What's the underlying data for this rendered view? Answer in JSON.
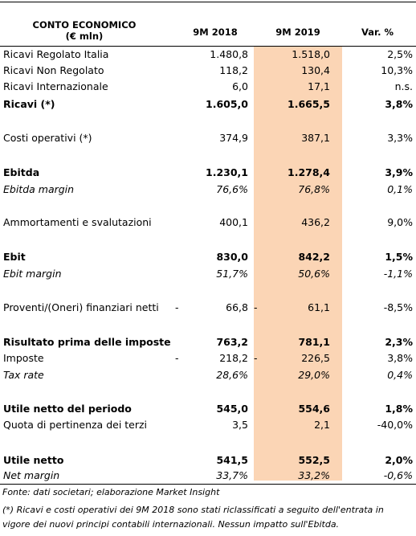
{
  "header": {
    "title_line1": "CONTO ECONOMICO",
    "title_line2": "(€ mln)",
    "col1": "9M 2018",
    "col2": "9M 2019",
    "col3": "Var. %"
  },
  "rows": [
    {
      "label": "Ricavi Regolato Italia",
      "v1": "1.480,8",
      "v2": "1.518,0",
      "v3": "2,5%"
    },
    {
      "label": "Ricavi Non Regolato",
      "v1": "118,2",
      "v2": "130,4",
      "v3": "10,3%"
    },
    {
      "label": "Ricavi Internazionale",
      "v1": "6,0",
      "v2": "17,1",
      "v3": "n.s."
    },
    {
      "label": "Ricavi (*)",
      "v1": "1.605,0",
      "v2": "1.665,5",
      "v3": "3,8%"
    },
    {
      "label": "Costi operativi (*)",
      "v1": "374,9",
      "v2": "387,1",
      "v3": "3,3%"
    },
    {
      "label": "Ebitda",
      "v1": "1.230,1",
      "v2": "1.278,4",
      "v3": "3,9%"
    },
    {
      "label": "Ebitda margin",
      "v1": "76,6%",
      "v2": "76,8%",
      "v3": "0,1%"
    },
    {
      "label": "Ammortamenti e svalutazioni",
      "v1": "400,1",
      "v2": "436,2",
      "v3": "9,0%"
    },
    {
      "label": "Ebit",
      "v1": "830,0",
      "v2": "842,2",
      "v3": "1,5%"
    },
    {
      "label": "Ebit margin",
      "v1": "51,7%",
      "v2": "50,6%",
      "v3": "-1,1%"
    },
    {
      "label": "Proventi/(Oneri) finanziari netti",
      "neg1": "-",
      "v1": "66,8",
      "neg2": "-",
      "v2": "61,1",
      "v3": "-8,5%"
    },
    {
      "label": "Risultato prima delle imposte",
      "v1": "763,2",
      "v2": "781,1",
      "v3": "2,3%"
    },
    {
      "label": "Imposte",
      "neg1": "-",
      "v1": "218,2",
      "neg2": "-",
      "v2": "226,5",
      "v3": "3,8%"
    },
    {
      "label": "Tax rate",
      "v1": "28,6%",
      "v2": "29,0%",
      "v3": "0,4%"
    },
    {
      "label": "Utile netto del periodo",
      "v1": "545,0",
      "v2": "554,6",
      "v3": "1,8%"
    },
    {
      "label": "Quota di pertinenza dei terzi",
      "v1": "3,5",
      "v2": "2,1",
      "v3": "-40,0%"
    },
    {
      "label": "Utile netto",
      "v1": "541,5",
      "v2": "552,5",
      "v3": "2,0%"
    },
    {
      "label": "Net margin",
      "v1": "33,7%",
      "v2": "33,2%",
      "v3": "-0,6%"
    }
  ],
  "footer": {
    "source": "Fonte: dati societari; elaborazione Market Insight",
    "note_line1": "(*) Ricavi e costi operativi dei 9M 2018 sono stati riclassificati a seguito dell'entrata in",
    "note_line2": "vigore dei nuovi principi contabili internazionali. Nessun impatto sull'Ebitda."
  },
  "colors": {
    "highlight_column": "#fbd5b5"
  }
}
